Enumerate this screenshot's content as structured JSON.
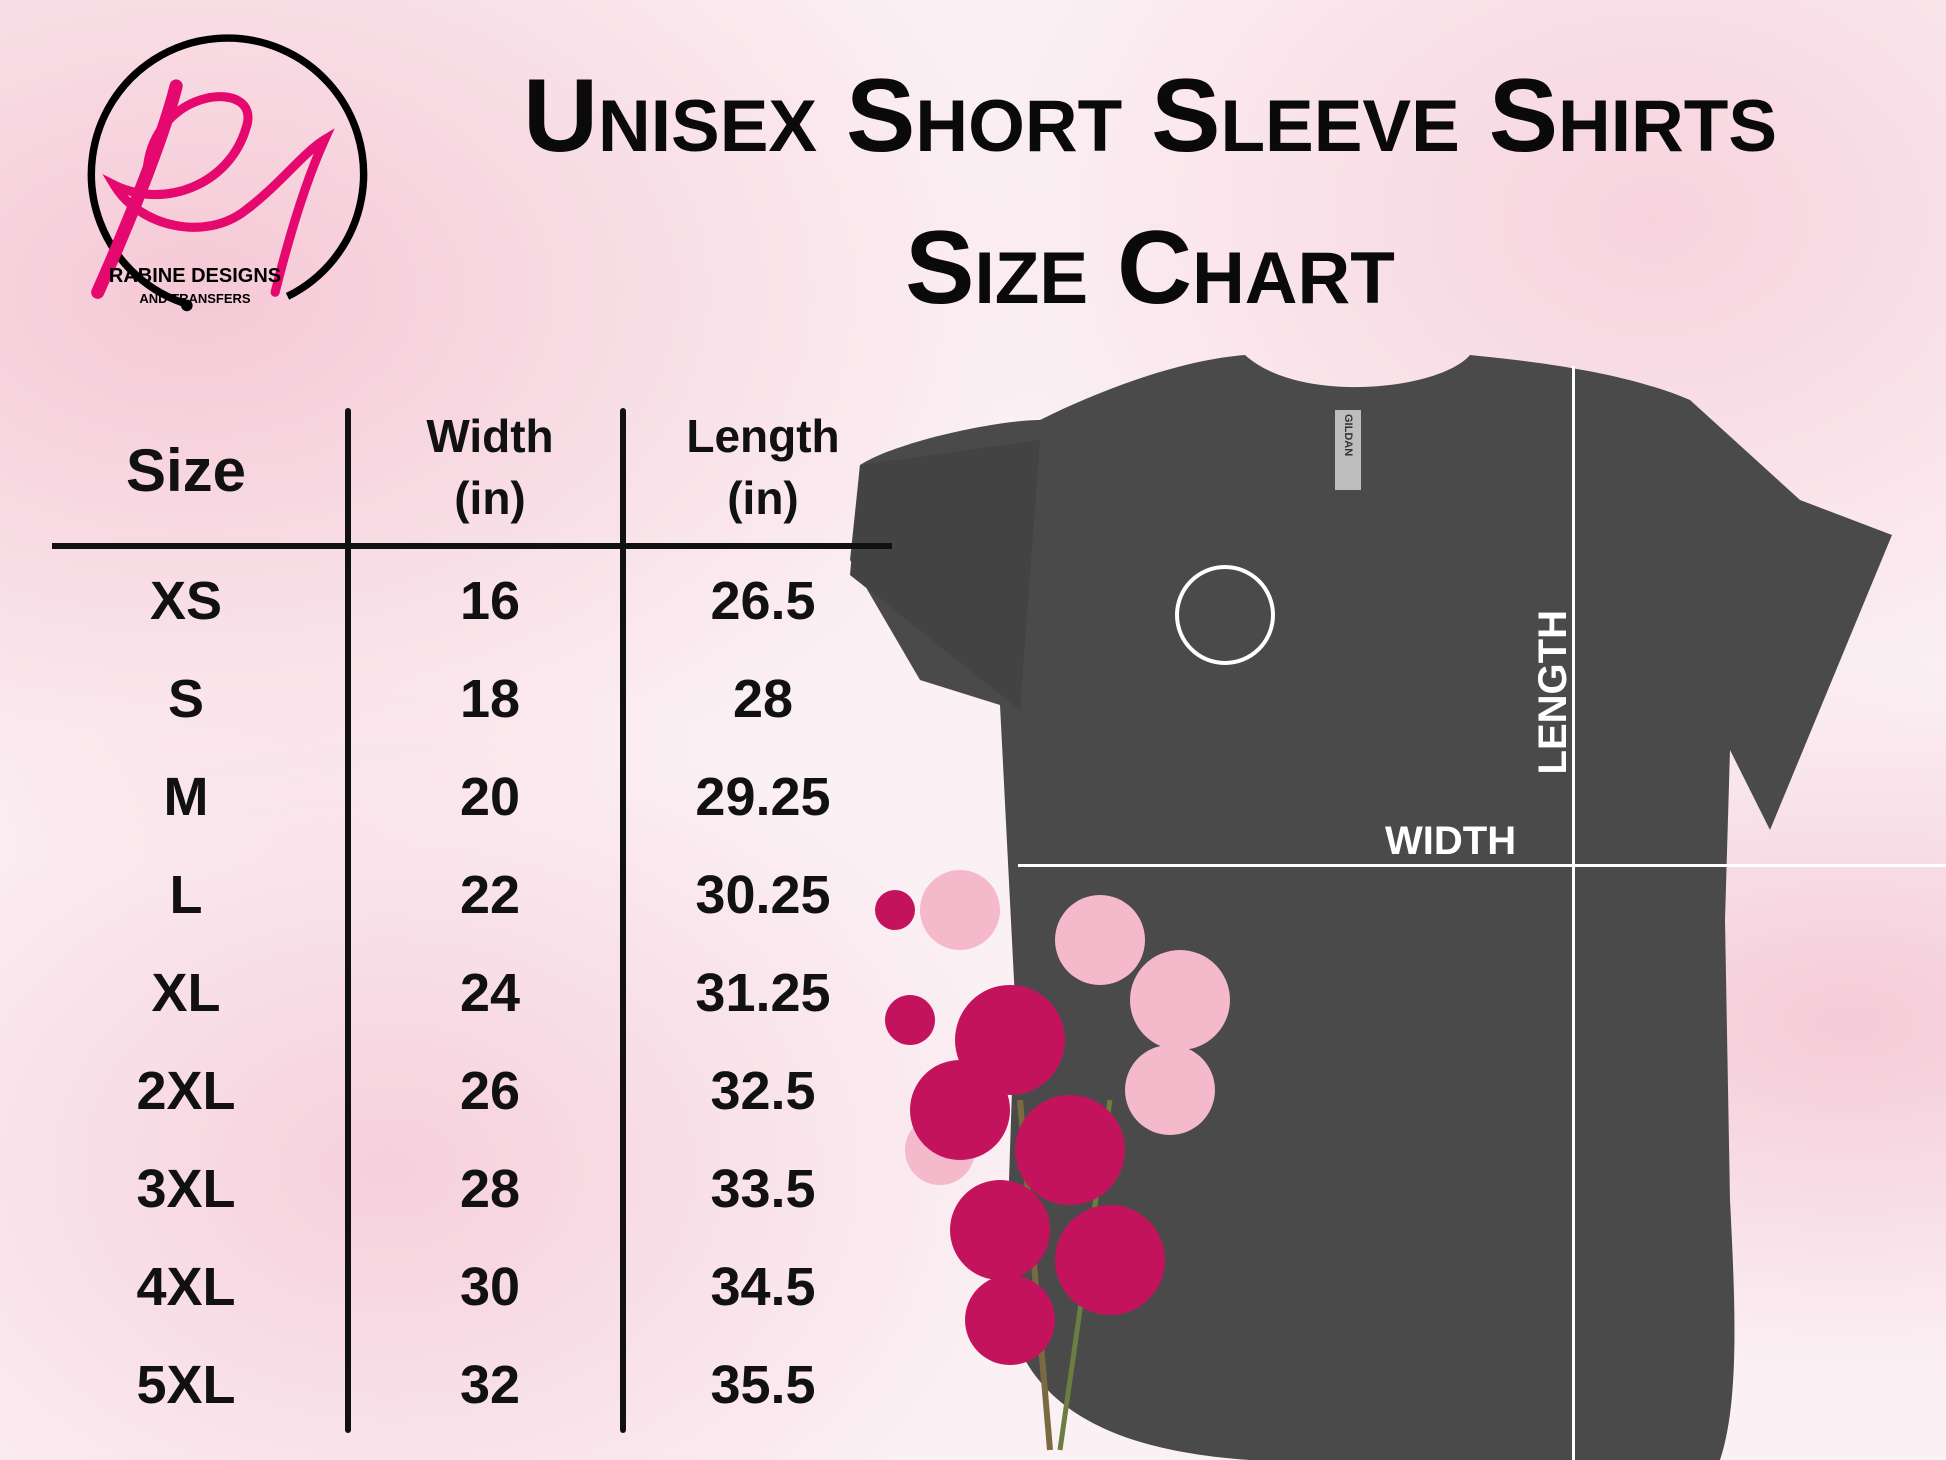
{
  "logo": {
    "monogram": "Rd",
    "brand": "RABINE DESIGNS",
    "tagline": "AND TRANSFERS",
    "pink": "#e4086f"
  },
  "title": {
    "line1": "Unisex Short Sleeve Shirts",
    "line2": "Size Chart"
  },
  "table": {
    "headers": {
      "size": "Size",
      "width": [
        "Width",
        "(in)"
      ],
      "length": [
        "Length",
        "(in)"
      ]
    },
    "rows": [
      {
        "size": "XS",
        "width": "16",
        "length": "26.5"
      },
      {
        "size": "S",
        "width": "18",
        "length": "28"
      },
      {
        "size": "M",
        "width": "20",
        "length": "29.25"
      },
      {
        "size": "L",
        "width": "22",
        "length": "30.25"
      },
      {
        "size": "XL",
        "width": "24",
        "length": "31.25"
      },
      {
        "size": "2XL",
        "width": "26",
        "length": "32.5"
      },
      {
        "size": "3XL",
        "width": "28",
        "length": "33.5"
      },
      {
        "size": "4XL",
        "width": "30",
        "length": "34.5"
      },
      {
        "size": "5XL",
        "width": "32",
        "length": "35.5"
      }
    ]
  },
  "shirt": {
    "color": "#4a4a4b",
    "width_label": "WIDTH",
    "length_label": "LENGTH",
    "tag": "GILDAN"
  }
}
